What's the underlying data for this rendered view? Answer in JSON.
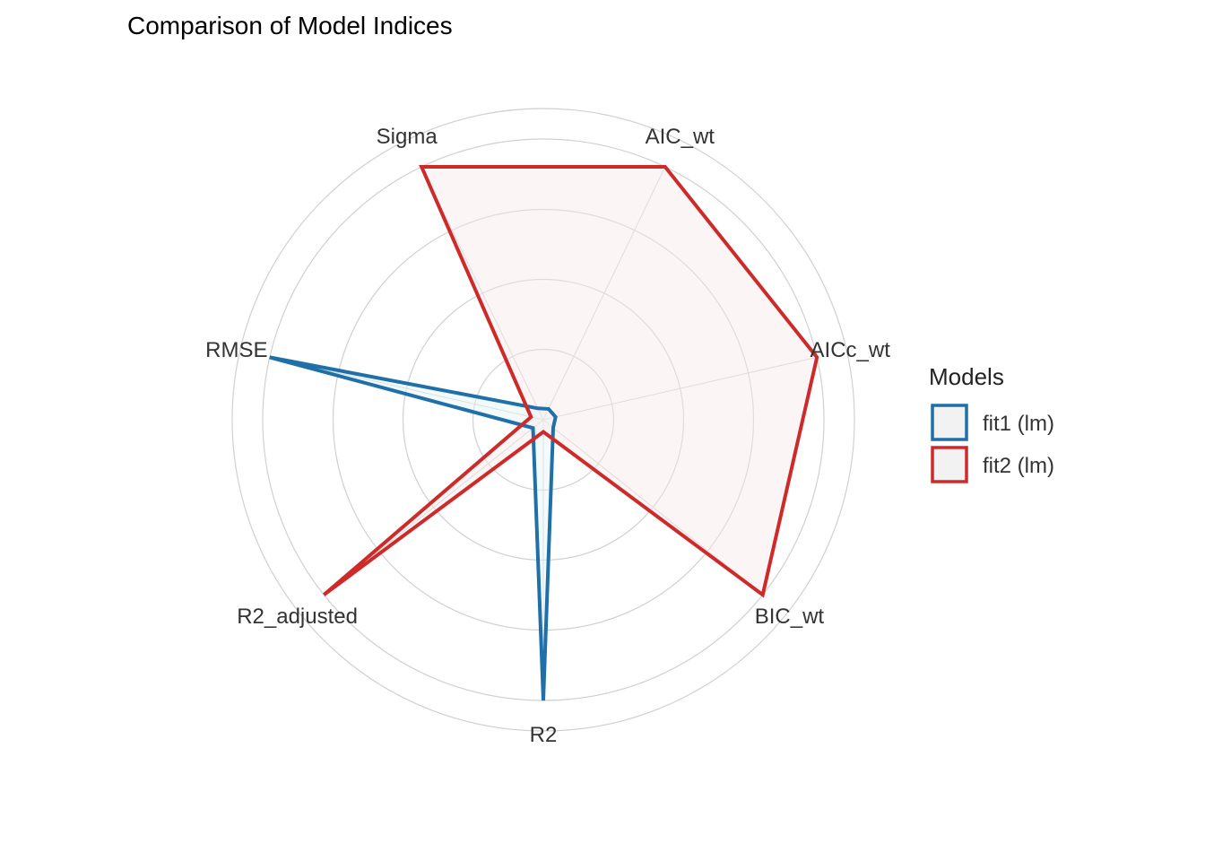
{
  "chart_data": {
    "type": "radar",
    "title": "Comparison of Model Indices",
    "categories": [
      "AIC_wt",
      "AICc_wt",
      "BIC_wt",
      "R2",
      "R2_adjusted",
      "RMSE",
      "Sigma"
    ],
    "range": [
      0,
      1
    ],
    "grid_rings": 5,
    "series": [
      {
        "name": "fit1 (lm)",
        "color": "#1f6fa8",
        "fill": "#e3f4f8",
        "values": [
          0.043,
          0.045,
          0.045,
          1.0,
          0.047,
          1.0,
          0.045
        ]
      },
      {
        "name": "fit2 (lm)",
        "color": "#cf2a2a",
        "fill": "#f8e8e8",
        "values": [
          1.0,
          1.0,
          1.0,
          0.043,
          1.0,
          0.045,
          1.0
        ]
      }
    ],
    "legend": {
      "title": "Models",
      "position": "right"
    }
  }
}
